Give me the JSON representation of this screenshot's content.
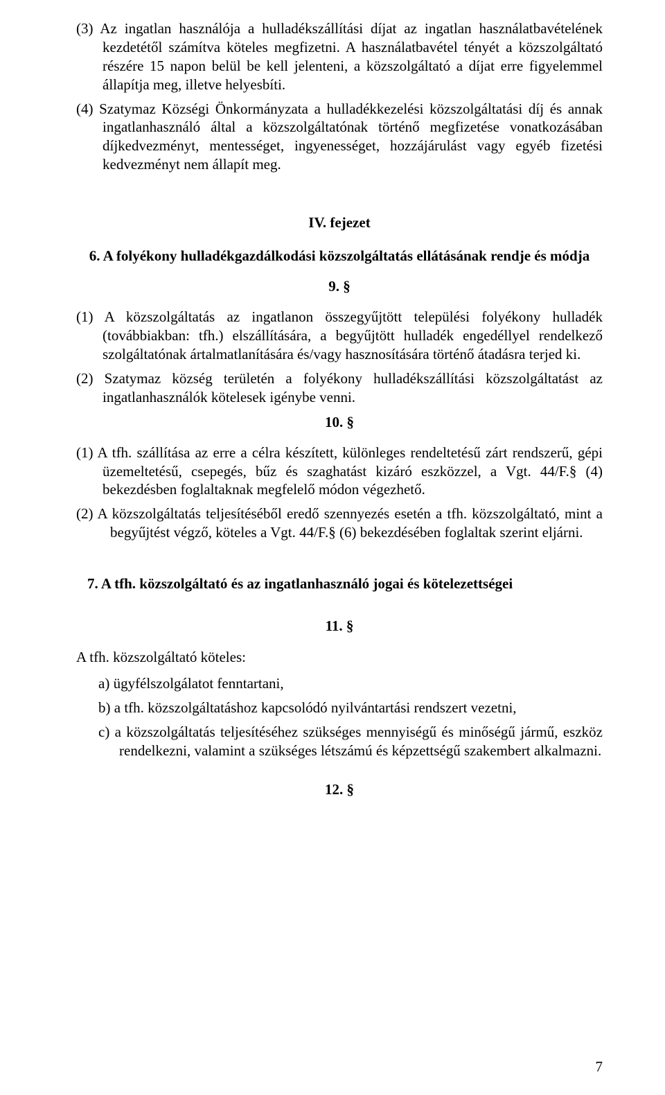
{
  "p3": "(3) Az ingatlan használója a hulladékszállítási díjat az ingatlan használatbavételének kezdetétől számítva köteles megfizetni. A használatbavétel tényét a közszolgáltató részére 15 napon belül be kell jelenteni, a közszolgáltató a díjat erre figyelemmel állapítja meg, illetve helyesbíti.",
  "p4": "(4) Szatymaz Községi Önkormányzata a hulladékkezelési közszolgáltatási díj és annak ingatlanhasználó által a közszolgáltatónak történő megfizetése vonatkozásában díjkedvezményt, mentességet, ingyenességet, hozzájárulást vagy egyéb fizetési kedvezményt nem állapít meg.",
  "chapter4": "IV. fejezet",
  "title6": "6. A folyékony hulladékgazdálkodási közszolgáltatás ellátásának rendje és módja",
  "sec9": "9. §",
  "p9_1": "(1) A közszolgáltatás az ingatlanon összegyűjtött települési folyékony hulladék (továbbiakban: tfh.) elszállítására, a begyűjtött hulladék engedéllyel rendelkező szolgáltatónak ártalmatlanítására és/vagy hasznosítására történő átadásra terjed ki.",
  "p9_2": "(2) Szatymaz község területén a folyékony hulladékszállítási közszolgáltatást az ingatlanhasználók kötelesek igénybe venni.",
  "sec10": "10. §",
  "p10_1": "(1) A tfh. szállítása az erre a célra készített, különleges rendeltetésű zárt rendszerű, gépi üzemeltetésű, csepegés, bűz és szaghatást kizáró eszközzel, a Vgt. 44/F.§ (4) bekezdésben foglaltaknak megfelelő módon végezhető.",
  "p10_2": "(2) A közszolgáltatás teljesítéséből eredő szennyezés esetén a tfh. közszolgáltató, mint a begyűjtést végző, köteles a Vgt. 44/F.§ (6) bekezdésében foglaltak szerint eljárni.",
  "title7": "7.  A tfh. közszolgáltató és az ingatlanhasználó jogai és kötelezettségei",
  "sec11": "11. §",
  "intro11": "A tfh. közszolgáltató köteles:",
  "p11_a": "a) ügyfélszolgálatot fenntartani,",
  "p11_b": "b) a tfh. közszolgáltatáshoz kapcsolódó nyilvántartási rendszert vezetni,",
  "p11_c": "c) a közszolgáltatás teljesítéséhez szükséges mennyiségű és minőségű jármű, eszköz rendelkezni, valamint a szükséges létszámú és képzettségű szakembert alkalmazni.",
  "sec12": "12. §",
  "pageNumber": "7"
}
